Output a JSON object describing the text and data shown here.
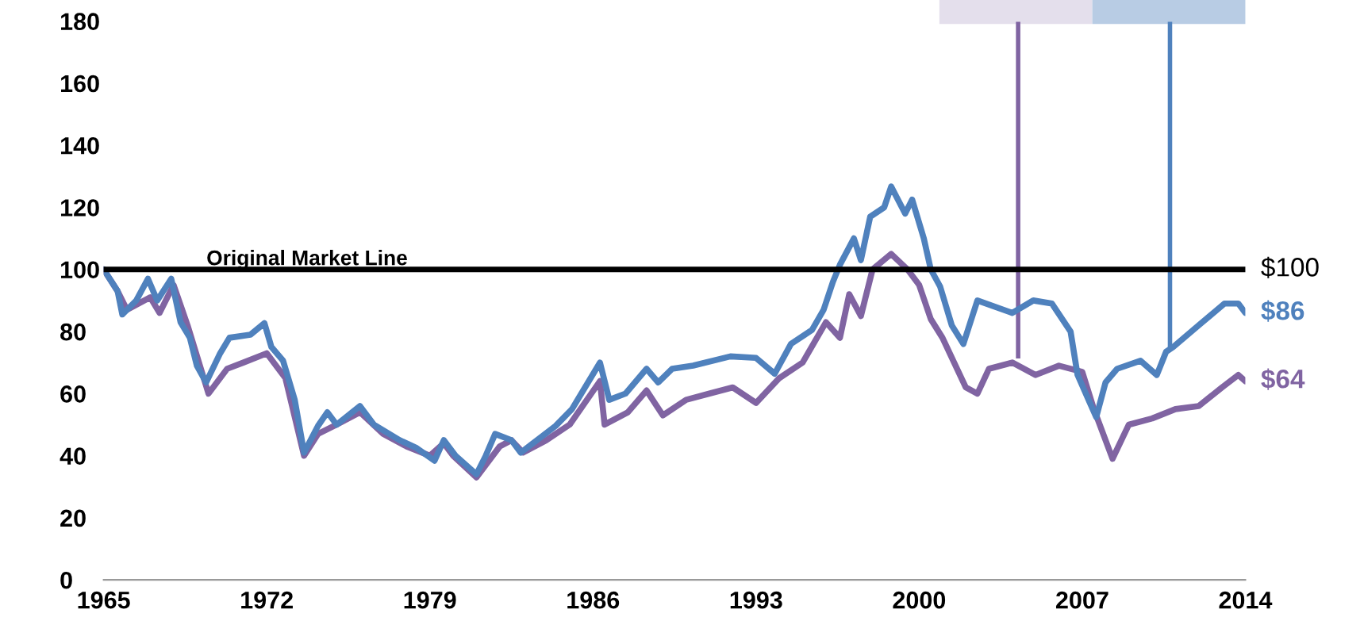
{
  "chart_data": {
    "type": "line",
    "xlim": [
      1965,
      2014
    ],
    "ylim": [
      0,
      180
    ],
    "xticks": [
      1965,
      1972,
      1979,
      1986,
      1993,
      2000,
      2007,
      2014
    ],
    "yticks": [
      0,
      20,
      40,
      60,
      80,
      100,
      120,
      140,
      160,
      180
    ],
    "ref_lines": [
      {
        "axis": "y",
        "value": 100,
        "label": "Original Market Line",
        "color": "#000000"
      }
    ],
    "annotations": [
      {
        "text": "$100",
        "x": 2014,
        "y": 100
      }
    ],
    "series": [
      {
        "color": "#8064a2",
        "x": [
          1965,
          1965.6,
          1966,
          1967,
          1967.4,
          1968,
          1968.6,
          1969.5,
          1970.3,
          1971,
          1972,
          1972.8,
          1973.6,
          1974.2,
          1975,
          1976,
          1977,
          1978,
          1979,
          1979.6,
          1980,
          1981,
          1982,
          1982.5,
          1983,
          1984,
          1985,
          1986.3,
          1986.5,
          1987.5,
          1988.3,
          1989,
          1990,
          1991,
          1992,
          1993,
          1994,
          1995,
          1996,
          1996.6,
          1997,
          1997.5,
          1998,
          1998.8,
          1999.5,
          2000,
          2000.5,
          2001,
          2002,
          2002.5,
          2003,
          2004,
          2005,
          2006,
          2007,
          2007.5,
          2008.3,
          2009,
          2010,
          2011,
          2012,
          2013,
          2013.7,
          2014
        ],
        "values": [
          100,
          93,
          87,
          91,
          86,
          95,
          82,
          60,
          68,
          70,
          73,
          65,
          40,
          47,
          50,
          54,
          47,
          43,
          40,
          44,
          40,
          33,
          43,
          45,
          41,
          45,
          50,
          64,
          50,
          54,
          61,
          53,
          58,
          60,
          62,
          57,
          65,
          70,
          83,
          78,
          92,
          85,
          100,
          105,
          100,
          95,
          84,
          78,
          62,
          60,
          68,
          70,
          66,
          69,
          67,
          55,
          39,
          50,
          52,
          55,
          56,
          62,
          66,
          64
        ],
        "value_labels": [
          null,
          null,
          null,
          null,
          null,
          null,
          null,
          null,
          null,
          null,
          null,
          null,
          null,
          null,
          null,
          null,
          null,
          null,
          null,
          null,
          null,
          null,
          null,
          null,
          null,
          null,
          null,
          null,
          null,
          null,
          null,
          null,
          null,
          null,
          null,
          null,
          null,
          null,
          null,
          null,
          null,
          null,
          null,
          null,
          null,
          null,
          null,
          null,
          null,
          null,
          null,
          null,
          null,
          null,
          null,
          null,
          null,
          null,
          null,
          null,
          null,
          null,
          null,
          "$64"
        ]
      },
      {
        "color": "#4f81bd",
        "x": [
          1965,
          1965.6,
          1965.8,
          1966.4,
          1966.9,
          1967.3,
          1967.9,
          1968.3,
          1968.7,
          1969,
          1969.4,
          1970,
          1970.4,
          1971.3,
          1971.9,
          1972.2,
          1972.7,
          1973.2,
          1973.6,
          1974.2,
          1974.6,
          1975,
          1976,
          1976.6,
          1977.7,
          1978.4,
          1979.2,
          1979.6,
          1980.1,
          1981,
          1981.4,
          1981.8,
          1982.5,
          1982.9,
          1983.6,
          1984.4,
          1985.1,
          1986.3,
          1986.7,
          1987.4,
          1988.3,
          1988.8,
          1989.4,
          1990.3,
          1991.9,
          1993,
          1993.8,
          1994.5,
          1995.4,
          1995.9,
          1996.3,
          1996.6,
          1997.2,
          1997.5,
          1997.9,
          1998.5,
          1998.8,
          1999.4,
          1999.7,
          2000.2,
          2000.5,
          2000.9,
          2001.4,
          2001.9,
          2002.5,
          2004,
          2004.9,
          2005.7,
          2006.5,
          2006.8,
          2007.6,
          2008,
          2008.5,
          2009.5,
          2010.2,
          2010.6,
          2010.9,
          2012,
          2013.1,
          2013.7,
          2014
        ],
        "values": [
          100,
          93,
          85.5,
          90,
          97,
          90,
          97,
          83,
          78,
          69,
          63.6,
          73,
          78,
          79,
          82.7,
          75,
          70.6,
          58,
          41,
          49.6,
          54,
          50,
          56,
          50,
          45,
          42.6,
          38.4,
          45,
          40,
          34,
          40,
          47,
          45,
          41,
          45,
          49.6,
          55,
          70,
          58,
          60,
          68,
          63.6,
          68,
          69,
          72,
          71.5,
          66.4,
          76,
          80.5,
          87,
          96,
          101.5,
          110,
          103,
          117,
          120,
          126.7,
          118,
          122.5,
          110,
          100,
          94.5,
          82,
          76,
          90,
          86,
          90,
          89,
          80,
          66,
          52.4,
          63.6,
          68,
          70.6,
          66,
          73.5,
          75,
          82,
          89,
          89,
          86
        ],
        "value_labels": [
          null,
          null,
          null,
          null,
          null,
          null,
          null,
          null,
          null,
          null,
          null,
          null,
          null,
          null,
          null,
          null,
          null,
          null,
          null,
          null,
          null,
          null,
          null,
          null,
          null,
          null,
          null,
          null,
          null,
          null,
          null,
          null,
          null,
          null,
          null,
          null,
          null,
          null,
          null,
          null,
          null,
          null,
          null,
          null,
          null,
          null,
          null,
          null,
          null,
          null,
          null,
          null,
          null,
          null,
          null,
          null,
          null,
          null,
          null,
          null,
          null,
          null,
          null,
          null,
          null,
          null,
          null,
          null,
          null,
          null,
          null,
          null,
          null,
          null,
          null,
          null,
          null,
          null,
          null,
          null,
          "$86"
        ]
      }
    ]
  }
}
